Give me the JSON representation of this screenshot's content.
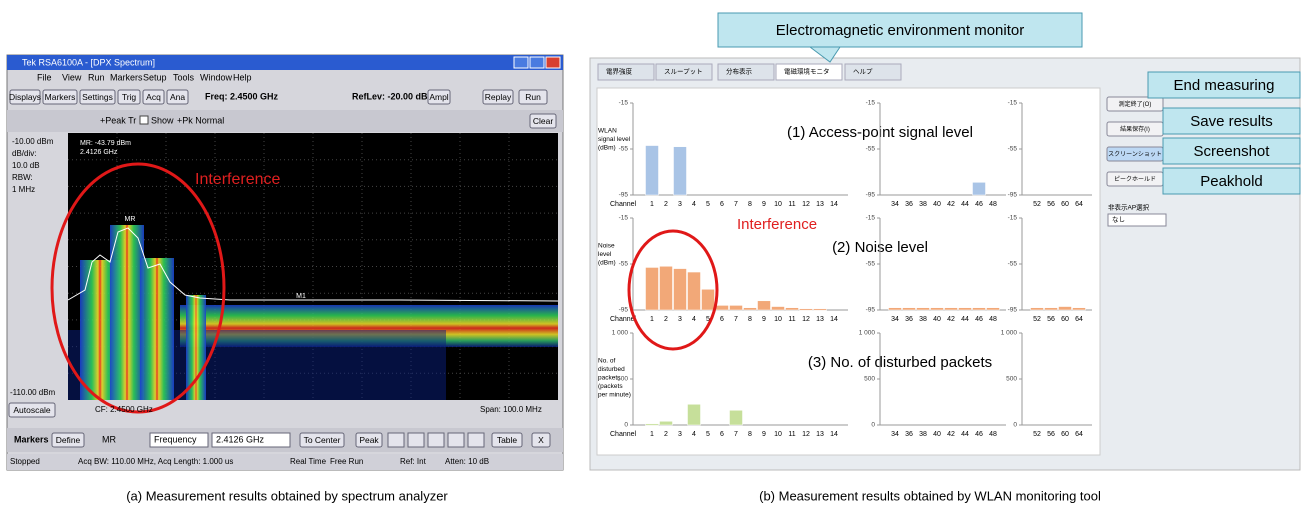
{
  "left_panel": {
    "window_title": "Tek RSA6100A - [DPX Spectrum]",
    "menu": [
      "File",
      "View",
      "Run",
      "Markers",
      "Setup",
      "Tools",
      "Window",
      "Help"
    ],
    "toolbar": [
      "Displays",
      "Markers",
      "Settings",
      "Trig",
      "Acq",
      "Ana"
    ],
    "freq": "Freq: 2.4500 GHz",
    "ref_lev": "RefLev: -20.00 dBm",
    "toolbar_right": [
      "Ampl",
      "Replay",
      "Run"
    ],
    "trace_bar": [
      "+Peak Tr",
      "Show",
      "+Pk Normal"
    ],
    "clear": "Clear",
    "side_labels": [
      "-10.00 dBm",
      "dB/div:",
      "10.0 dB",
      "RBW:",
      "1 MHz"
    ],
    "bottom_level": "-110.00 dBm",
    "marker_readout": [
      "MR: -43.79 dBm",
      "2.4126 GHz"
    ],
    "marker_labels": [
      "MR",
      "M1"
    ],
    "annotation": "Interference",
    "autoscale": "Autoscale",
    "cf": "CF: 2.4500 GHz",
    "span": "Span: 100.0 MHz",
    "marker_bar": {
      "label": "Markers",
      "define": "Define",
      "mr": "MR",
      "mode": "Frequency",
      "value": "2.4126 GHz",
      "buttons": [
        "To Center",
        "Peak",
        "Table",
        "X"
      ]
    },
    "status": [
      "Stopped",
      "Acq BW: 110.00 MHz, Acq Length: 1.000 us",
      "Real Time",
      "Free Run",
      "Ref: Int",
      "Atten: 10 dB"
    ]
  },
  "left_caption": "(a) Measurement results obtained by spectrum analyzer",
  "right_panel": {
    "callout": "Electromagnetic environment monitor",
    "tabs": [
      "電界強度",
      "スループット",
      "分布表示",
      "電磁環境モニタ",
      "ヘルプ"
    ],
    "buttons": [
      {
        "label": "測定終了(O)",
        "callout": "End measuring"
      },
      {
        "label": "結果保存(I)",
        "callout": "Save results"
      },
      {
        "label": "スクリーンショット",
        "callout": "Screenshot"
      },
      {
        "label": "ピークホールド",
        "callout": "Peakhold"
      }
    ],
    "ap_select_label": "非表示AP選択",
    "ap_select_value": "なし",
    "annotation": "Interference",
    "x_label": "Channel",
    "groups": [
      {
        "channels": [
          1,
          2,
          3,
          4,
          5,
          6,
          7,
          8,
          9,
          10,
          11,
          12,
          13,
          14
        ]
      },
      {
        "channels": [
          34,
          36,
          38,
          40,
          42,
          44,
          46,
          48
        ]
      },
      {
        "channels": [
          52,
          56,
          60,
          64
        ]
      }
    ],
    "rows": [
      {
        "label": [
          "WLAN",
          "signal level",
          "(dBm)"
        ],
        "title": "(1) Access-point signal level",
        "ylim": [
          -95,
          -15
        ],
        "yticks": [
          -15,
          -55,
          -95
        ],
        "color": "#a9c4e6",
        "values": [
          [
            -52,
            null,
            -53,
            null,
            null,
            null,
            null,
            null,
            null,
            null,
            null,
            null,
            null,
            null
          ],
          [
            null,
            null,
            null,
            null,
            null,
            null,
            -84,
            null
          ],
          [
            null,
            null,
            null,
            null
          ]
        ]
      },
      {
        "label": [
          "Noise",
          "level",
          "(dBm)"
        ],
        "title": "(2) Noise level",
        "ylim": [
          -95,
          -15
        ],
        "yticks": [
          -15,
          -55,
          -95
        ],
        "color": "#f2a878",
        "values": [
          [
            -58,
            -57,
            -59,
            -62,
            -77,
            -91,
            -91,
            -93,
            -87,
            -92,
            -93,
            -94,
            -94,
            null
          ],
          [
            -93,
            -93,
            -93,
            -93,
            -93,
            -93,
            -93,
            -93
          ],
          [
            -93,
            -93,
            -92,
            -93
          ]
        ]
      },
      {
        "label": [
          "No. of",
          "disturbed",
          "packets",
          "(packets",
          "per minute)"
        ],
        "title": "(3) No. of disturbed packets",
        "ylim": [
          0,
          1000
        ],
        "yticks": [
          {
            "value": 1000,
            "label": "1 000"
          },
          500,
          0
        ],
        "color": "#c6df9a",
        "values": [
          [
            12,
            40,
            null,
            225,
            null,
            null,
            160,
            null,
            null,
            null,
            null,
            null,
            null,
            null
          ],
          [
            null,
            null,
            null,
            null,
            null,
            null,
            null,
            null
          ],
          [
            null,
            null,
            null,
            null
          ]
        ]
      }
    ]
  },
  "right_caption": "(b) Measurement results obtained by WLAN monitoring tool"
}
